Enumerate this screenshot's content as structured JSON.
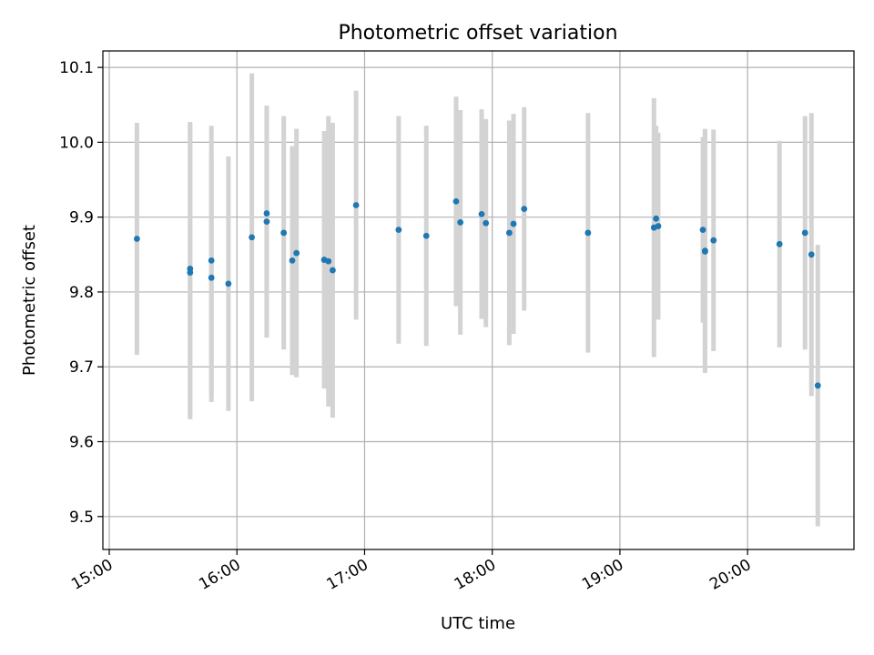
{
  "chart_data": {
    "type": "scatter",
    "title": "Photometric offset variation",
    "xlabel": "UTC time",
    "ylabel": "Photometric offset",
    "xlim": [
      "14:57",
      "20:50"
    ],
    "ylim": [
      9.456,
      10.122
    ],
    "x_ticks": [
      "15:00",
      "16:00",
      "17:00",
      "18:00",
      "19:00",
      "20:00"
    ],
    "y_ticks": [
      9.5,
      9.6,
      9.7,
      9.8,
      9.9,
      10.0,
      10.1
    ],
    "y_tick_labels": [
      "9.5",
      "9.6",
      "9.7",
      "9.8",
      "9.9",
      "10.0",
      "10.1"
    ],
    "grid": true,
    "colors": {
      "point": "#1f77b4",
      "errorbar": "#d3d3d3",
      "grid": "#b0b0b0"
    },
    "series": [
      {
        "points": [
          {
            "x": "15:13",
            "y": 9.871,
            "err": 0.155
          },
          {
            "x": "15:38",
            "y": 9.831,
            "err": 0.196
          },
          {
            "x": "15:38",
            "y": 9.826,
            "err": 0.196
          },
          {
            "x": "15:48",
            "y": 9.842,
            "err": 0.18
          },
          {
            "x": "15:48",
            "y": 9.819,
            "err": 0.166
          },
          {
            "x": "15:56",
            "y": 9.811,
            "err": 0.17
          },
          {
            "x": "16:07",
            "y": 9.873,
            "err": 0.219
          },
          {
            "x": "16:14",
            "y": 9.905,
            "err": 0.137
          },
          {
            "x": "16:14",
            "y": 9.894,
            "err": 0.155
          },
          {
            "x": "16:22",
            "y": 9.879,
            "err": 0.156
          },
          {
            "x": "16:26",
            "y": 9.842,
            "err": 0.153
          },
          {
            "x": "16:28",
            "y": 9.852,
            "err": 0.166
          },
          {
            "x": "16:41",
            "y": 9.843,
            "err": 0.172
          },
          {
            "x": "16:43",
            "y": 9.841,
            "err": 0.194
          },
          {
            "x": "16:45",
            "y": 9.829,
            "err": 0.197
          },
          {
            "x": "16:56",
            "y": 9.916,
            "err": 0.153
          },
          {
            "x": "17:16",
            "y": 9.883,
            "err": 0.152
          },
          {
            "x": "17:29",
            "y": 9.875,
            "err": 0.147
          },
          {
            "x": "17:43",
            "y": 9.921,
            "err": 0.14
          },
          {
            "x": "17:45",
            "y": 9.893,
            "err": 0.15
          },
          {
            "x": "17:55",
            "y": 9.904,
            "err": 0.14
          },
          {
            "x": "17:57",
            "y": 9.892,
            "err": 0.139
          },
          {
            "x": "18:08",
            "y": 9.879,
            "err": 0.15
          },
          {
            "x": "18:10",
            "y": 9.891,
            "err": 0.147
          },
          {
            "x": "18:15",
            "y": 9.911,
            "err": 0.136
          },
          {
            "x": "18:45",
            "y": 9.879,
            "err": 0.16
          },
          {
            "x": "19:16",
            "y": 9.886,
            "err": 0.173
          },
          {
            "x": "19:17",
            "y": 9.898,
            "err": 0.124
          },
          {
            "x": "19:18",
            "y": 9.888,
            "err": 0.125
          },
          {
            "x": "19:39",
            "y": 9.883,
            "err": 0.124
          },
          {
            "x": "19:40",
            "y": 9.855,
            "err": 0.163
          },
          {
            "x": "19:40",
            "y": 9.854,
            "err": 0.162
          },
          {
            "x": "19:44",
            "y": 9.869,
            "err": 0.148
          },
          {
            "x": "20:15",
            "y": 9.864,
            "err": 0.138
          },
          {
            "x": "20:27",
            "y": 9.879,
            "err": 0.156
          },
          {
            "x": "20:30",
            "y": 9.85,
            "err": 0.189
          },
          {
            "x": "20:33",
            "y": 9.675,
            "err": 0.188
          }
        ]
      }
    ]
  }
}
